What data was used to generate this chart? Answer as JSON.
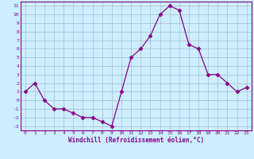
{
  "x": [
    0,
    1,
    2,
    3,
    4,
    5,
    6,
    7,
    8,
    9,
    10,
    11,
    12,
    13,
    14,
    15,
    16,
    17,
    18,
    19,
    20,
    21,
    22,
    23
  ],
  "y": [
    1.0,
    2.0,
    0.0,
    -1.0,
    -1.0,
    -1.5,
    -2.0,
    -2.0,
    -2.5,
    -3.0,
    1.0,
    5.0,
    6.0,
    7.5,
    10.0,
    11.0,
    10.5,
    6.5,
    6.0,
    3.0,
    3.0,
    2.0,
    1.0,
    1.5
  ],
  "line_color": "#880088",
  "marker": "D",
  "marker_size": 2.5,
  "bg_color": "#cceeff",
  "grid_color": "#aabbcc",
  "xlabel": "Windchill (Refroidissement éolien,°C)",
  "xlabel_color": "#880088",
  "yticks": [
    11,
    10,
    9,
    8,
    7,
    6,
    5,
    4,
    3,
    2,
    1,
    0,
    -1,
    -2,
    -3
  ],
  "ylim": [
    -3.5,
    11.5
  ],
  "xlim": [
    -0.5,
    23.5
  ]
}
